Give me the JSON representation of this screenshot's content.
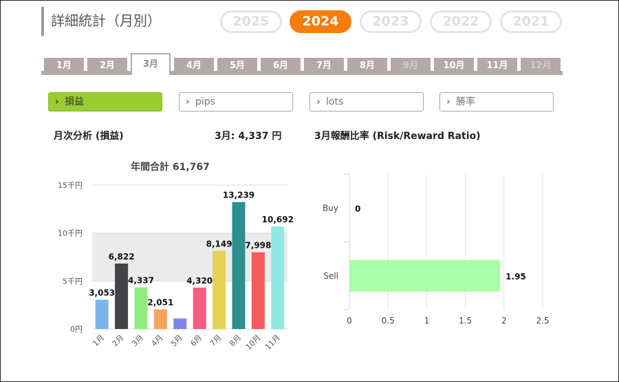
{
  "page_title": "詳細統計（月別）",
  "years": [
    {
      "label": "2025",
      "active": false
    },
    {
      "label": "2024",
      "active": true
    },
    {
      "label": "2023",
      "active": false
    },
    {
      "label": "2022",
      "active": false
    },
    {
      "label": "2021",
      "active": false
    }
  ],
  "months": [
    {
      "label": "1月",
      "state": "normal"
    },
    {
      "label": "2月",
      "state": "normal"
    },
    {
      "label": "3月",
      "state": "active"
    },
    {
      "label": "4月",
      "state": "normal"
    },
    {
      "label": "5月",
      "state": "normal"
    },
    {
      "label": "6月",
      "state": "normal"
    },
    {
      "label": "7月",
      "state": "normal"
    },
    {
      "label": "8月",
      "state": "normal"
    },
    {
      "label": "9月",
      "state": "disabled"
    },
    {
      "label": "10月",
      "state": "normal"
    },
    {
      "label": "11月",
      "state": "normal"
    },
    {
      "label": "12月",
      "state": "disabled"
    }
  ],
  "metrics": [
    {
      "label": "損益",
      "active": true
    },
    {
      "label": "pips",
      "active": false
    },
    {
      "label": "lots",
      "active": false
    },
    {
      "label": "勝率",
      "active": false
    }
  ],
  "monthly_section": {
    "title": "月次分析 (損益)",
    "month_value": "3月:  4,337 円"
  },
  "risk_section": {
    "title": "3月報酬比率 (Risk/Reward Ratio)"
  },
  "annual_total": "年間合計 61,767",
  "colors": {
    "accent": "#f47d0b",
    "active_metric": "#99cc33",
    "tab": "#b3a9a6"
  },
  "chart_data": [
    {
      "type": "bar",
      "categories": [
        "1月",
        "2月",
        "3月",
        "4月",
        "5月",
        "6月",
        "7月",
        "8月",
        "10月",
        "11月"
      ],
      "values": [
        3053,
        6822,
        4337,
        2051,
        1100,
        4320,
        8149,
        13239,
        7998,
        10692
      ],
      "data_labels": [
        "3,053",
        "6,822",
        "4,337",
        "2,051",
        "",
        "4,320",
        "8,149",
        "13,239",
        "7,998",
        "10,692"
      ],
      "colors": [
        "#7cb5ec",
        "#434348",
        "#90ed7d",
        "#f7a35c",
        "#8085e9",
        "#f15c80",
        "#e4d354",
        "#2b908f",
        "#f45b5b",
        "#91e8e1"
      ],
      "y_ticks": [
        {
          "value": 0,
          "label": "0円"
        },
        {
          "value": 5000,
          "label": "5千円"
        },
        {
          "value": 10000,
          "label": "10千円"
        },
        {
          "value": 15000,
          "label": "15千円"
        }
      ],
      "ylim": [
        0,
        15000
      ],
      "grid": true
    },
    {
      "type": "bar",
      "orientation": "horizontal",
      "categories": [
        "Buy",
        "Sell"
      ],
      "values": [
        0,
        1.95
      ],
      "data_labels": [
        "0",
        "1.95"
      ],
      "color": "#aaffaa",
      "x_ticks": [
        "0",
        "0.5",
        "1",
        "1.5",
        "2",
        "2.5"
      ],
      "xlim": [
        0,
        2.5
      ],
      "grid": true
    }
  ]
}
